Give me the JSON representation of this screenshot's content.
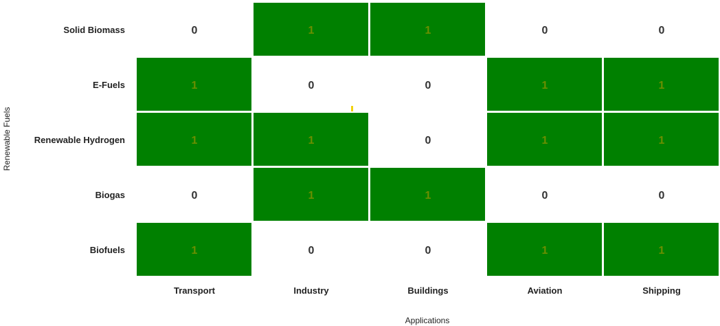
{
  "chart_data": {
    "type": "heatmap",
    "title": "",
    "xlabel": "Applications",
    "ylabel": "Renewable Fuels",
    "x_categories": [
      "Transport",
      "Industry",
      "Buildings",
      "Aviation",
      "Shipping"
    ],
    "y_categories": [
      "Solid Biomass",
      "E-Fuels",
      "Renewable Hydrogen",
      "Biogas",
      "Biofuels"
    ],
    "values": [
      [
        0,
        1,
        1,
        0,
        0
      ],
      [
        1,
        0,
        0,
        1,
        1
      ],
      [
        1,
        1,
        0,
        1,
        1
      ],
      [
        0,
        1,
        1,
        0,
        0
      ],
      [
        1,
        0,
        0,
        1,
        1
      ]
    ],
    "colors": {
      "1": "#008000",
      "0": "#ffffff"
    },
    "label_colors": {
      "on_filled": "#6b8f00",
      "on_empty": "#333333"
    },
    "grid": false,
    "legend": "none"
  }
}
